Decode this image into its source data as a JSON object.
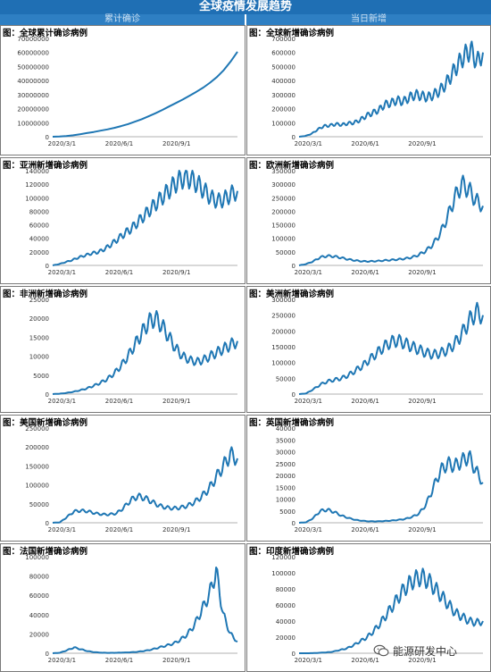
{
  "header": {
    "title": "全球疫情发展趋势",
    "left_column": "累计确诊",
    "right_column": "当日新增"
  },
  "watermark": {
    "text": "能源研发中心",
    "icon": "wechat-icon"
  },
  "colors": {
    "banner": "#1f6fb4",
    "column_header": "#2e7fc3",
    "line": "#1f77b4"
  },
  "chart_data": [
    {
      "type": "line",
      "title": "图：全球累计确诊病例",
      "ylim": [
        0,
        70000000
      ],
      "yticks": [
        "70000000",
        "60000000",
        "50000000",
        "40000000",
        "30000000",
        "20000000",
        "10000000",
        "0"
      ],
      "xticks": [
        "2020/3/1",
        "2020/6/1",
        "2020/9/1"
      ],
      "series": [
        {
          "values": [
            0,
            100000,
            500000,
            1000000,
            1800000,
            2600000,
            3400000,
            4300000,
            5200000,
            6300000,
            7600000,
            9000000,
            10700000,
            12500000,
            14500000,
            16700000,
            19000000,
            21500000,
            24000000,
            26500000,
            29200000,
            32000000,
            35000000,
            38500000,
            42500000,
            47500000,
            53500000,
            60500000
          ]
        }
      ]
    },
    {
      "type": "line",
      "title": "图：全球新增确诊病例",
      "ylim": [
        0,
        700000
      ],
      "yticks": [
        "700000",
        "600000",
        "500000",
        "400000",
        "300000",
        "200000",
        "100000",
        "0"
      ],
      "xticks": [
        "2020/3/1",
        "2020/6/1",
        "2020/9/1"
      ],
      "series": [
        {
          "values": [
            0,
            5000,
            20000,
            50000,
            75000,
            80000,
            90000,
            85000,
            95000,
            100000,
            120000,
            150000,
            170000,
            190000,
            230000,
            240000,
            260000,
            250000,
            280000,
            300000,
            290000,
            280000,
            300000,
            330000,
            380000,
            450000,
            520000,
            580000,
            620000,
            530000,
            600000
          ]
        }
      ]
    },
    {
      "type": "line",
      "title": "图：亚洲新增确诊病例",
      "ylim": [
        0,
        140000
      ],
      "yticks": [
        "140000",
        "120000",
        "100000",
        "80000",
        "60000",
        "40000",
        "20000",
        "0"
      ],
      "xticks": [
        "2020/3/1",
        "2020/6/1",
        "2020/9/1"
      ],
      "series": [
        {
          "values": [
            0,
            2000,
            5000,
            8000,
            12000,
            15000,
            18000,
            20000,
            25000,
            32000,
            40000,
            48000,
            55000,
            65000,
            75000,
            85000,
            95000,
            105000,
            115000,
            125000,
            130000,
            128000,
            120000,
            110000,
            100000,
            95000,
            98000,
            105000,
            110000
          ]
        }
      ]
    },
    {
      "type": "line",
      "title": "图：欧洲新增确诊病例",
      "ylim": [
        0,
        350000
      ],
      "yticks": [
        "350000",
        "300000",
        "250000",
        "200000",
        "150000",
        "100000",
        "50000",
        "0"
      ],
      "xticks": [
        "2020/3/1",
        "2020/6/1",
        "2020/9/1"
      ],
      "series": [
        {
          "values": [
            0,
            5000,
            15000,
            30000,
            35000,
            33000,
            28000,
            22000,
            18000,
            15000,
            15000,
            16000,
            18000,
            20000,
            22000,
            25000,
            30000,
            40000,
            55000,
            80000,
            120000,
            180000,
            250000,
            300000,
            280000,
            240000,
            220000
          ]
        }
      ]
    },
    {
      "type": "line",
      "title": "图：非洲新增确诊病例",
      "ylim": [
        0,
        25000
      ],
      "yticks": [
        "25000",
        "20000",
        "15000",
        "10000",
        "5000",
        "0"
      ],
      "xticks": [
        "2020/3/1",
        "2020/6/1",
        "2020/9/1"
      ],
      "series": [
        {
          "values": [
            0,
            100,
            300,
            600,
            1000,
            1500,
            2200,
            3000,
            4000,
            5500,
            7500,
            10000,
            13000,
            16000,
            19000,
            20000,
            18000,
            15000,
            12000,
            10000,
            9000,
            8500,
            9000,
            10000,
            11000,
            12000,
            13000,
            14000
          ]
        }
      ]
    },
    {
      "type": "line",
      "title": "图：美洲新增确诊病例",
      "ylim": [
        0,
        300000
      ],
      "yticks": [
        "300000",
        "250000",
        "200000",
        "150000",
        "100000",
        "50000",
        "0"
      ],
      "xticks": [
        "2020/3/1",
        "2020/6/1",
        "2020/9/1"
      ],
      "series": [
        {
          "values": [
            0,
            2000,
            15000,
            30000,
            40000,
            45000,
            50000,
            60000,
            75000,
            90000,
            110000,
            130000,
            150000,
            165000,
            170000,
            160000,
            150000,
            140000,
            130000,
            125000,
            130000,
            140000,
            160000,
            190000,
            230000,
            260000,
            250000
          ]
        }
      ]
    },
    {
      "type": "line",
      "title": "图：美国新增确诊病例",
      "ylim": [
        0,
        250000
      ],
      "yticks": [
        "250000",
        "200000",
        "150000",
        "100000",
        "50000",
        "0"
      ],
      "xticks": [
        "2020/3/1",
        "2020/6/1",
        "2020/9/1"
      ],
      "series": [
        {
          "values": [
            0,
            1000,
            15000,
            30000,
            32000,
            30000,
            25000,
            22000,
            22000,
            25000,
            40000,
            60000,
            70000,
            65000,
            55000,
            45000,
            40000,
            38000,
            40000,
            45000,
            55000,
            70000,
            90000,
            120000,
            150000,
            180000,
            170000
          ]
        }
      ]
    },
    {
      "type": "line",
      "title": "图：英国新增确诊病例",
      "ylim": [
        0,
        40000
      ],
      "yticks": [
        "40000",
        "35000",
        "30000",
        "25000",
        "20000",
        "15000",
        "10000",
        "5000",
        "0"
      ],
      "xticks": [
        "2020/3/1",
        "2020/6/1",
        "2020/9/1"
      ],
      "series": [
        {
          "values": [
            0,
            200,
            2000,
            5000,
            5500,
            4500,
            3000,
            2000,
            1200,
            800,
            600,
            600,
            700,
            900,
            1200,
            1600,
            2500,
            4000,
            8000,
            15000,
            22000,
            25000,
            24000,
            26000,
            28000,
            22000,
            17000
          ]
        }
      ]
    },
    {
      "type": "line",
      "title": "图：法国新增确诊病例",
      "ylim": [
        0,
        100000
      ],
      "yticks": [
        "100000",
        "80000",
        "60000",
        "40000",
        "20000",
        "0"
      ],
      "xticks": [
        "2020/3/1",
        "2020/6/1",
        "2020/9/1"
      ],
      "series": [
        {
          "values": [
            0,
            500,
            3000,
            6000,
            4000,
            2000,
            1000,
            500,
            400,
            500,
            700,
            1000,
            1500,
            2500,
            4000,
            6000,
            8000,
            10000,
            14000,
            20000,
            30000,
            45000,
            60000,
            85000,
            40000,
            20000,
            12000
          ]
        }
      ]
    },
    {
      "type": "line",
      "title": "图：印度新增确诊病例",
      "ylim": [
        0,
        120000
      ],
      "yticks": [
        "120000",
        "100000",
        "80000",
        "60000",
        "40000",
        "20000",
        "0"
      ],
      "xticks": [
        "2020/3/1",
        "2020/6/1",
        "2020/9/1"
      ],
      "series": [
        {
          "values": [
            0,
            0,
            100,
            500,
            1000,
            2000,
            4000,
            6000,
            10000,
            15000,
            20000,
            28000,
            38000,
            50000,
            62000,
            75000,
            85000,
            92000,
            95000,
            90000,
            80000,
            70000,
            60000,
            50000,
            45000,
            40000,
            38000,
            40000
          ]
        }
      ]
    }
  ]
}
